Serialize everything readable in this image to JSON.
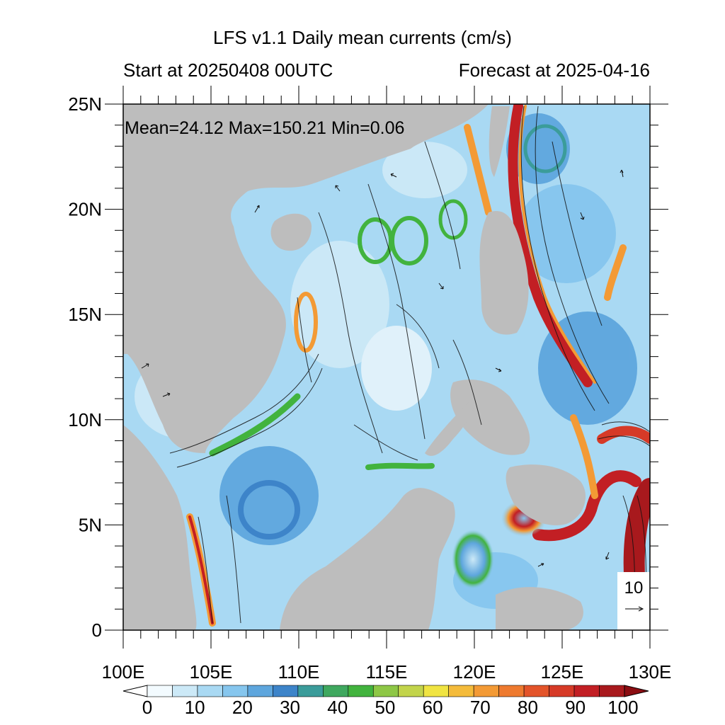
{
  "title": "LFS v1.1 Daily mean currents (cm/s)",
  "start_label": "Start at 20250408 00UTC",
  "forecast_label": "Forecast at 2025-04-16",
  "stats": "Mean=24.12  Max=150.21  Min=0.06",
  "lat_labels": [
    "25N",
    "20N",
    "15N",
    "10N",
    "5N",
    "0"
  ],
  "lon_labels": [
    "100E",
    "105E",
    "110E",
    "115E",
    "120E",
    "125E",
    "130E"
  ],
  "colorbar_labels": [
    "0",
    "10",
    "20",
    "30",
    "40",
    "50",
    "60",
    "70",
    "80",
    "90",
    "100"
  ],
  "colorbar_colors": [
    "#f3fbff",
    "#cce9f7",
    "#a9d9f3",
    "#86c6ee",
    "#5ea6dd",
    "#3d84c9",
    "#3b9c9a",
    "#3fa85f",
    "#42b33e",
    "#8ec746",
    "#c2d44b",
    "#f0e442",
    "#f4bb3b",
    "#f39a35",
    "#ee7a2f",
    "#e3542a",
    "#d63a27",
    "#c21f24",
    "#a8191d"
  ],
  "reference_vector": {
    "value": "10"
  },
  "colors": {
    "land": "#bdbdbd",
    "ocean_base": "#a9d9f3"
  }
}
